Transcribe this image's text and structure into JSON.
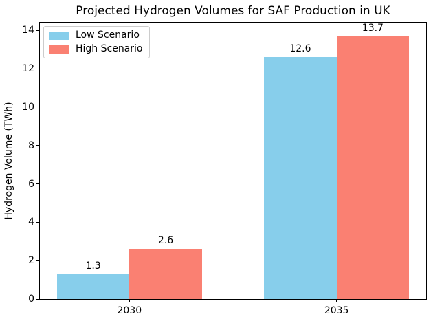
{
  "chart_data": {
    "type": "bar",
    "title": "Projected Hydrogen Volumes for SAF Production in UK",
    "xlabel": "",
    "ylabel": "Hydrogen Volume (TWh)",
    "categories": [
      "2030",
      "2035"
    ],
    "series": [
      {
        "name": "Low Scenario",
        "color": "#87CEEB",
        "values": [
          1.3,
          12.6
        ]
      },
      {
        "name": "High Scenario",
        "color": "#FA8072",
        "values": [
          2.6,
          13.7
        ]
      }
    ],
    "bar_value_labels": [
      [
        "1.3",
        "12.6"
      ],
      [
        "2.6",
        "13.7"
      ]
    ],
    "yticks": [
      "0",
      "2",
      "4",
      "6",
      "8",
      "10",
      "12",
      "14"
    ],
    "ytick_values": [
      0,
      2,
      4,
      6,
      8,
      10,
      12,
      14
    ],
    "ylim": [
      0,
      14.4
    ],
    "xlim": [
      -0.4325,
      1.4325
    ],
    "x_positions": [
      0,
      1
    ],
    "bar_width": 0.35,
    "grid": false,
    "legend": {
      "position": "upper left"
    },
    "colors": {
      "text": "#000000",
      "frame": "#000000",
      "background": "#ffffff",
      "legend_border": "#cccccc"
    }
  }
}
